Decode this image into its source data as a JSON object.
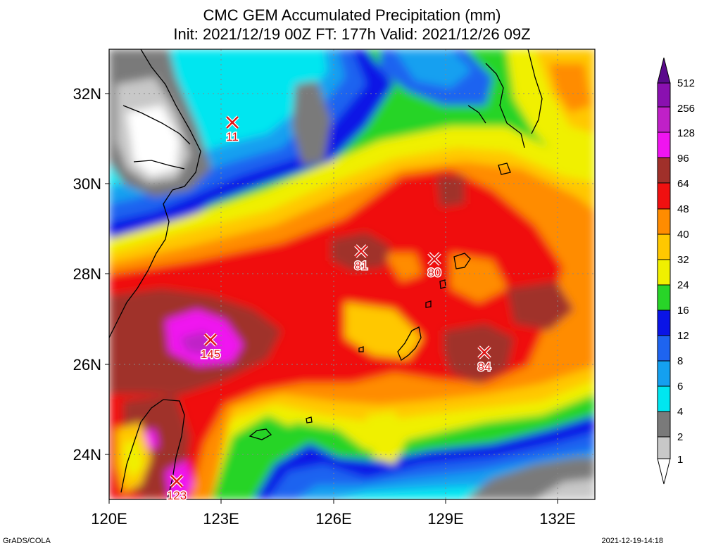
{
  "title_line1": "CMC GEM Accumulated Precipitation (mm)",
  "title_line2": "Init: 2021/12/19 00Z  FT: 177h  Valid: 2021/12/26 09Z",
  "lat_labels": [
    "32N",
    "30N",
    "28N",
    "26N",
    "24N"
  ],
  "lon_labels": [
    "120E",
    "123E",
    "126E",
    "129E",
    "132E"
  ],
  "colorbar": {
    "levels": [
      "512",
      "256",
      "128",
      "96",
      "64",
      "48",
      "40",
      "32",
      "24",
      "16",
      "12",
      "8",
      "6",
      "4",
      "2",
      "1"
    ],
    "colors": {
      "above_512": "#5a0a8c",
      "256_512": "#8a10b0",
      "128_256": "#c020c8",
      "96_128": "#f014f0",
      "64_96": "#a0302a",
      "48_64": "#f01010",
      "40_48": "#ff8c00",
      "32_40": "#ffc800",
      "24_32": "#f0f000",
      "16_24": "#28d428",
      "12_16": "#0a14e6",
      "8_12": "#1e64f0",
      "6_8": "#14a0f0",
      "4_6": "#00e6f0",
      "2_4": "#7a7a7a",
      "1_2": "#c8c8c8"
    }
  },
  "markers": [
    {
      "label": "11"
    },
    {
      "label": "81"
    },
    {
      "label": "80"
    },
    {
      "label": "145"
    },
    {
      "label": "84"
    },
    {
      "label": "123"
    }
  ],
  "footer_left": "GrADS/COLA",
  "footer_right": "2021-12-19-14:18"
}
